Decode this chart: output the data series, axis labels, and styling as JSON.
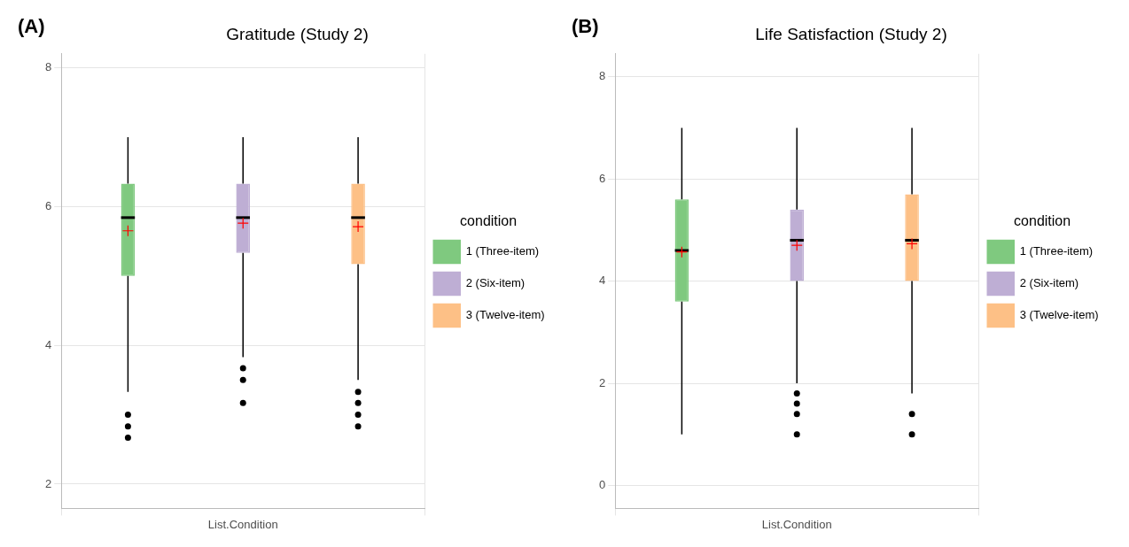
{
  "chart_data": [
    {
      "type": "box",
      "title": "Gratitude (Study 2)",
      "annotations": [
        "(A)"
      ],
      "categories": [
        "List.Condition"
      ],
      "legend_title": "condition",
      "legend": "right",
      "grid": true,
      "ylim": [
        1.65,
        8.2
      ],
      "yticks": [
        2,
        4,
        6,
        8
      ],
      "series": [
        {
          "name": "1 (Three-item)",
          "color": "#7fc97f",
          "boxes": [
            {
              "low": 3.33,
              "q1": 5.0,
              "median": 5.84,
              "q3": 6.33,
              "high": 7.0,
              "mean": 5.65,
              "outliers": [
                3.0,
                2.83,
                2.67
              ]
            }
          ]
        },
        {
          "name": "2 (Six-item)",
          "color": "#beaed4",
          "boxes": [
            {
              "low": 3.83,
              "q1": 5.33,
              "median": 5.84,
              "q3": 6.33,
              "high": 7.0,
              "mean": 5.76,
              "outliers": [
                3.67,
                3.5,
                3.17
              ]
            }
          ]
        },
        {
          "name": "3 (Twelve-item)",
          "color": "#fdc086",
          "boxes": [
            {
              "low": 3.5,
              "q1": 5.17,
              "median": 5.84,
              "q3": 6.33,
              "high": 7.0,
              "mean": 5.71,
              "outliers": [
                3.33,
                3.17,
                3.0,
                2.83
              ]
            }
          ]
        }
      ]
    },
    {
      "type": "box",
      "title": "Life Satisfaction (Study 2)",
      "annotations": [
        "(B)"
      ],
      "categories": [
        "List.Condition"
      ],
      "legend_title": "condition",
      "legend": "right",
      "grid": true,
      "ylim": [
        -0.45,
        8.45
      ],
      "yticks": [
        0,
        2,
        4,
        6,
        8
      ],
      "series": [
        {
          "name": "1 (Three-item)",
          "color": "#7fc97f",
          "boxes": [
            {
              "low": 1.0,
              "q1": 3.6,
              "median": 4.6,
              "q3": 5.6,
              "high": 7.0,
              "mean": 4.57
            }
          ]
        },
        {
          "name": "2 (Six-item)",
          "color": "#beaed4",
          "boxes": [
            {
              "low": 2.0,
              "q1": 4.0,
              "median": 4.8,
              "q3": 5.4,
              "high": 7.0,
              "mean": 4.7,
              "outliers": [
                1.8,
                1.6,
                1.4,
                1.0
              ]
            }
          ]
        },
        {
          "name": "3 (Twelve-item)",
          "color": "#fdc086",
          "boxes": [
            {
              "low": 1.8,
              "q1": 4.0,
              "median": 4.8,
              "q3": 5.7,
              "high": 7.0,
              "mean": 4.73,
              "outliers": [
                1.4,
                1.0
              ]
            }
          ]
        }
      ]
    }
  ]
}
